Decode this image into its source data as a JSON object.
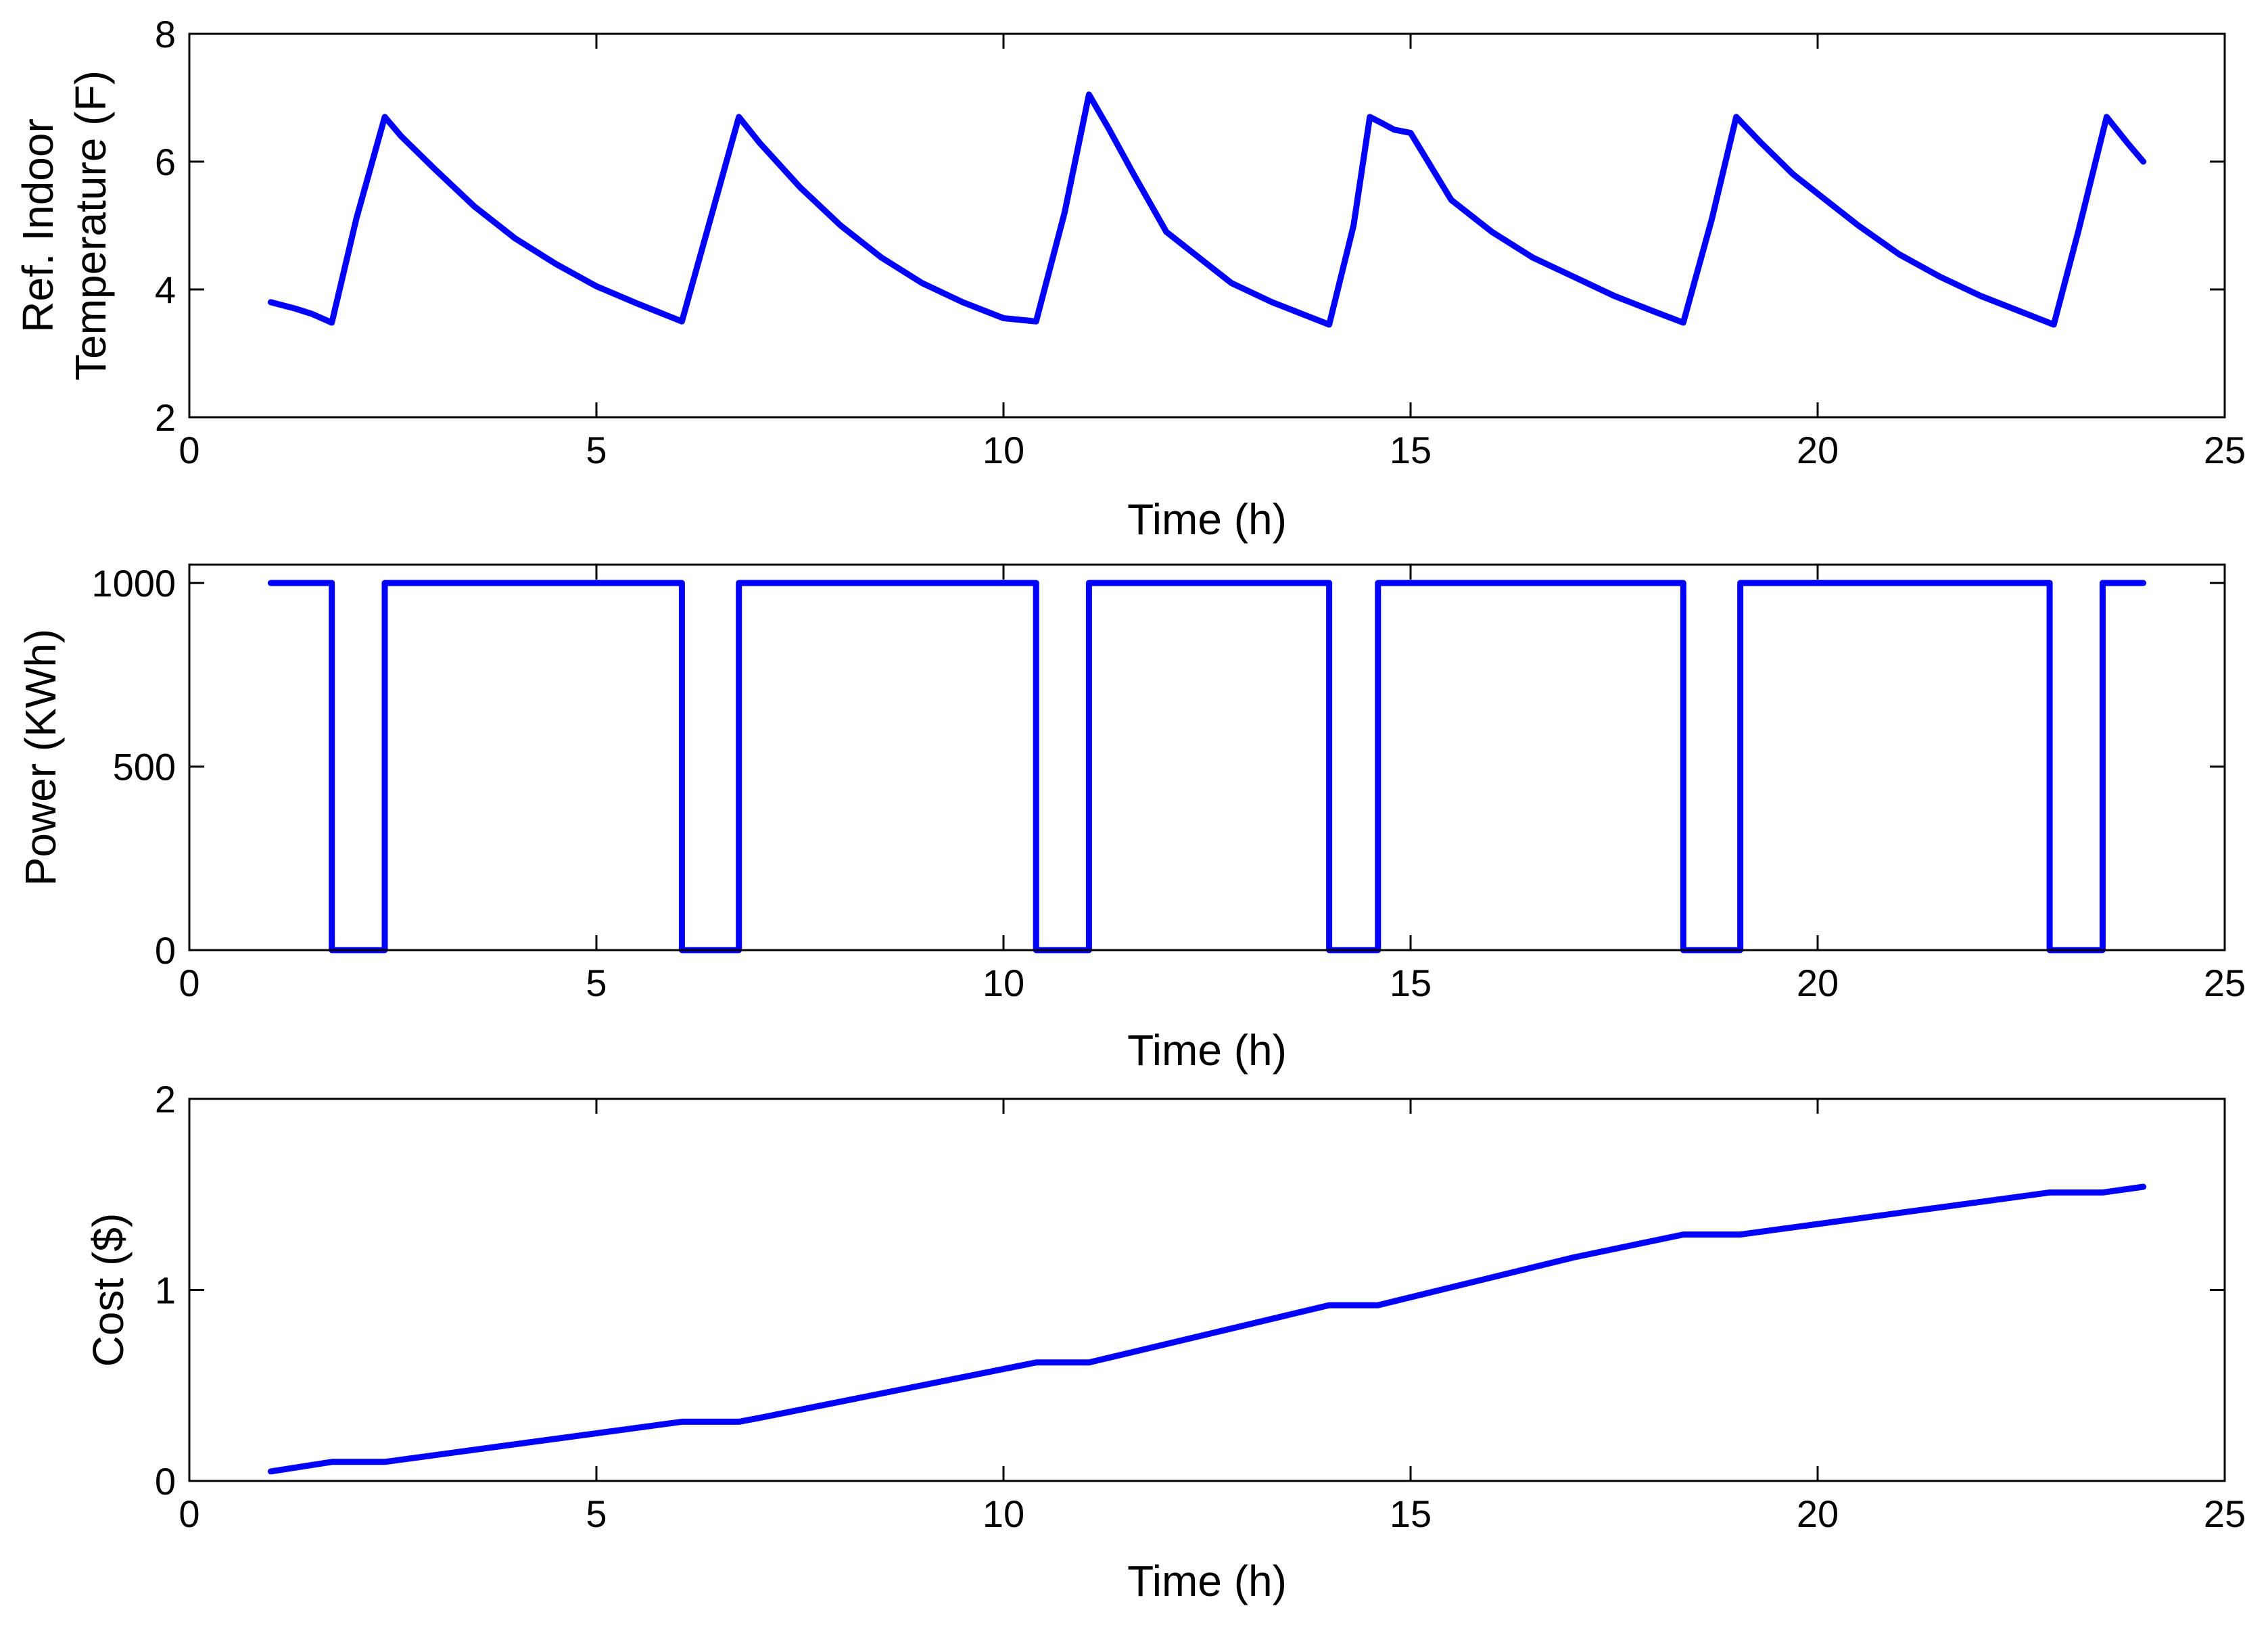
{
  "chart_data": [
    {
      "type": "line",
      "xlabel": "Time (h)",
      "ylabel": "Ref. Indoor Temperature (F)",
      "ylabel_lines": [
        "Ref. Indoor",
        "Temperature (F)"
      ],
      "xlim": [
        0,
        25
      ],
      "ylim": [
        2,
        8
      ],
      "xticks": [
        0,
        5,
        10,
        15,
        20,
        25
      ],
      "yticks": [
        2,
        4,
        6,
        8
      ],
      "grid": false,
      "line_color": "#0000FF",
      "series": [
        {
          "x": [
            1.0,
            1.3,
            1.5,
            1.75,
            2.05,
            2.4,
            2.6,
            3.0,
            3.5,
            4.0,
            4.5,
            5.0,
            5.5,
            6.05,
            6.4,
            6.75,
            7.0,
            7.5,
            8.0,
            8.5,
            9.0,
            9.5,
            10.0,
            10.4,
            10.75,
            11.05,
            11.3,
            11.6,
            12.0,
            12.3,
            12.8,
            13.3,
            13.7,
            14.0,
            14.3,
            14.5,
            14.65,
            14.8,
            15.0,
            15.5,
            16.0,
            16.5,
            17.0,
            17.5,
            18.0,
            18.35,
            18.7,
            19.0,
            19.3,
            19.7,
            20.0,
            20.5,
            21.0,
            21.5,
            22.0,
            22.5,
            22.9,
            23.2,
            23.55,
            23.8,
            24.0
          ],
          "y": [
            3.8,
            3.7,
            3.62,
            3.48,
            5.1,
            6.7,
            6.4,
            5.9,
            5.3,
            4.8,
            4.4,
            4.05,
            3.78,
            3.5,
            5.1,
            6.7,
            6.3,
            5.6,
            5.0,
            4.5,
            4.1,
            3.8,
            3.55,
            3.5,
            5.2,
            7.05,
            6.5,
            5.8,
            4.9,
            4.6,
            4.1,
            3.8,
            3.6,
            3.45,
            5.0,
            6.7,
            6.6,
            6.5,
            6.45,
            5.4,
            4.9,
            4.5,
            4.2,
            3.9,
            3.65,
            3.48,
            5.1,
            6.7,
            6.3,
            5.8,
            5.5,
            5.0,
            4.55,
            4.2,
            3.9,
            3.65,
            3.45,
            4.9,
            6.7,
            6.3,
            6.0
          ]
        }
      ]
    },
    {
      "type": "line",
      "xlabel": "Time (h)",
      "ylabel": "Power (KWh)",
      "ylabel_lines": [
        "Power (KWh)"
      ],
      "xlim": [
        0,
        25
      ],
      "ylim": [
        0,
        1050
      ],
      "xticks": [
        0,
        5,
        10,
        15,
        20,
        25
      ],
      "yticks": [
        0,
        500,
        1000
      ],
      "grid": false,
      "line_color": "#0000FF",
      "series": [
        {
          "x": [
            1.0,
            1.75,
            1.75,
            2.4,
            2.4,
            6.05,
            6.05,
            6.75,
            6.75,
            10.4,
            10.4,
            11.05,
            11.05,
            14.0,
            14.0,
            14.6,
            14.6,
            18.35,
            18.35,
            19.05,
            19.05,
            22.85,
            22.85,
            23.5,
            23.5,
            24.0
          ],
          "y": [
            1000,
            1000,
            0,
            0,
            1000,
            1000,
            0,
            0,
            1000,
            1000,
            0,
            0,
            1000,
            1000,
            0,
            0,
            1000,
            1000,
            0,
            0,
            1000,
            1000,
            0,
            0,
            1000,
            1000
          ]
        }
      ]
    },
    {
      "type": "line",
      "xlabel": "Time (h)",
      "ylabel": "Cost ($)",
      "ylabel_lines": [
        "Cost ($)"
      ],
      "xlim": [
        0,
        25
      ],
      "ylim": [
        0,
        2
      ],
      "xticks": [
        0,
        5,
        10,
        15,
        20,
        25
      ],
      "yticks": [
        0,
        1,
        2
      ],
      "grid": false,
      "line_color": "#0000FF",
      "series": [
        {
          "x": [
            1.0,
            1.75,
            2.4,
            6.05,
            6.75,
            7.0,
            10.4,
            11.05,
            14.0,
            14.6,
            17.0,
            18.35,
            19.05,
            22.85,
            23.5,
            24.0
          ],
          "y": [
            0.05,
            0.1,
            0.1,
            0.31,
            0.31,
            0.33,
            0.62,
            0.62,
            0.92,
            0.92,
            1.17,
            1.29,
            1.29,
            1.51,
            1.51,
            1.54
          ]
        }
      ]
    }
  ]
}
